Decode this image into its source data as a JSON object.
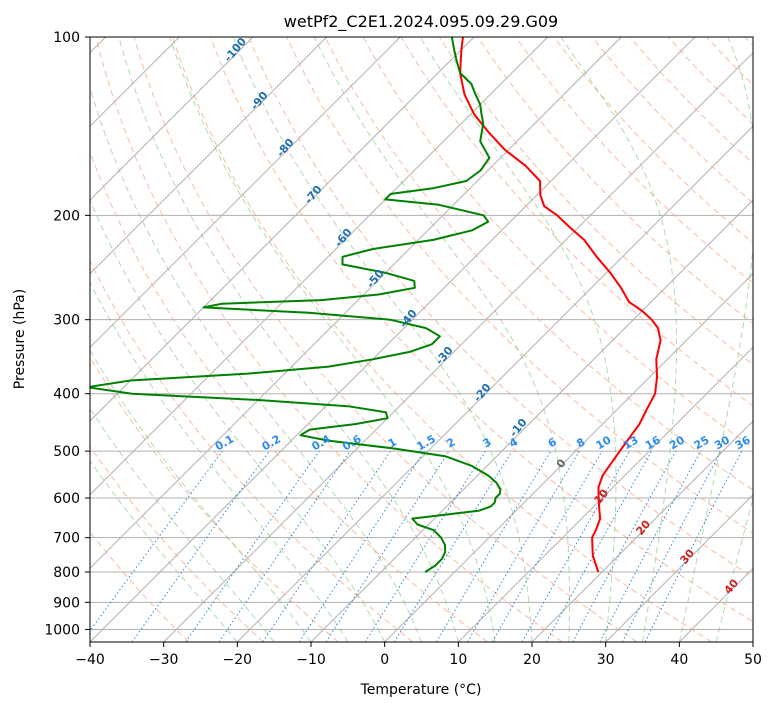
{
  "chart_data": {
    "type": "line",
    "title": "wetPf2_C2E1.2024.095.09.29.G09",
    "xlabel": "Temperature (°C)",
    "ylabel": "Pressure (hPa)",
    "xlim": [
      -40,
      50
    ],
    "ylim": [
      1050,
      100
    ],
    "y_scale": "log",
    "grid": true,
    "x_ticks": [
      -40,
      -30,
      -20,
      -10,
      0,
      10,
      20,
      30,
      40,
      50
    ],
    "y_ticks": [
      100,
      200,
      300,
      400,
      500,
      600,
      700,
      800,
      900,
      1000
    ],
    "series": [
      {
        "role": "temperature",
        "color": "#ff0000",
        "points": [
          [
            19.5,
            800
          ],
          [
            16.5,
            750
          ],
          [
            14.0,
            700
          ],
          [
            13.5,
            680
          ],
          [
            12.5,
            650
          ],
          [
            11.0,
            625
          ],
          [
            9.5,
            600
          ],
          [
            8.0,
            575
          ],
          [
            7.0,
            550
          ],
          [
            6.5,
            525
          ],
          [
            6.0,
            500
          ],
          [
            5.5,
            475
          ],
          [
            5.0,
            450
          ],
          [
            4.0,
            425
          ],
          [
            3.0,
            400
          ],
          [
            1.0,
            375
          ],
          [
            -1.5,
            350
          ],
          [
            -3.5,
            325
          ],
          [
            -5.5,
            310
          ],
          [
            -7.5,
            300
          ],
          [
            -10.0,
            290
          ],
          [
            -13.0,
            280
          ],
          [
            -16.0,
            265
          ],
          [
            -19.5,
            250
          ],
          [
            -23.5,
            235
          ],
          [
            -27.5,
            220
          ],
          [
            -31.0,
            210
          ],
          [
            -34.5,
            200
          ],
          [
            -37.5,
            193
          ],
          [
            -39.5,
            185
          ],
          [
            -41.5,
            175
          ],
          [
            -45.5,
            165
          ],
          [
            -50.5,
            155
          ],
          [
            -55.0,
            145
          ],
          [
            -59.5,
            135
          ],
          [
            -63.5,
            125
          ],
          [
            -67.0,
            115
          ],
          [
            -70.0,
            105
          ],
          [
            -71.5,
            100
          ]
        ]
      },
      {
        "role": "dewpoint",
        "color": "#008000",
        "points": [
          [
            -4.0,
            800
          ],
          [
            -3.5,
            780
          ],
          [
            -3.5,
            760
          ],
          [
            -4.0,
            740
          ],
          [
            -5.0,
            720
          ],
          [
            -6.5,
            700
          ],
          [
            -8.5,
            680
          ],
          [
            -11.5,
            665
          ],
          [
            -13.0,
            650
          ],
          [
            -9.0,
            640
          ],
          [
            -5.0,
            630
          ],
          [
            -4.0,
            620
          ],
          [
            -4.0,
            610
          ],
          [
            -4.5,
            600
          ],
          [
            -4.5,
            590
          ],
          [
            -5.0,
            580
          ],
          [
            -6.5,
            565
          ],
          [
            -8.5,
            550
          ],
          [
            -12.0,
            530
          ],
          [
            -17.0,
            510
          ],
          [
            -25.0,
            495
          ],
          [
            -35.0,
            480
          ],
          [
            -39.5,
            470
          ],
          [
            -39.0,
            460
          ],
          [
            -33.5,
            450
          ],
          [
            -30.0,
            440
          ],
          [
            -31.0,
            430
          ],
          [
            -37.0,
            420
          ],
          [
            -50.0,
            410
          ],
          [
            -68.0,
            400
          ],
          [
            -75.0,
            390
          ],
          [
            -70.0,
            380
          ],
          [
            -55.0,
            370
          ],
          [
            -45.0,
            360
          ],
          [
            -40.0,
            350
          ],
          [
            -36.0,
            340
          ],
          [
            -34.0,
            330
          ],
          [
            -34.0,
            320
          ],
          [
            -37.0,
            310
          ],
          [
            -43.0,
            300
          ],
          [
            -55.0,
            292
          ],
          [
            -70.0,
            286
          ],
          [
            -68.0,
            282
          ],
          [
            -55.0,
            278
          ],
          [
            -48.0,
            272
          ],
          [
            -44.0,
            265
          ],
          [
            -45.0,
            258
          ],
          [
            -50.0,
            250
          ],
          [
            -57.0,
            242
          ],
          [
            -58.0,
            235
          ],
          [
            -55.0,
            228
          ],
          [
            -48.0,
            220
          ],
          [
            -44.0,
            212
          ],
          [
            -43.0,
            205
          ],
          [
            -44.5,
            200
          ],
          [
            -52.0,
            192
          ],
          [
            -60.0,
            188
          ],
          [
            -60.0,
            184
          ],
          [
            -55.0,
            180
          ],
          [
            -51.5,
            175
          ],
          [
            -51.0,
            168
          ],
          [
            -51.5,
            160
          ],
          [
            -55.0,
            150
          ],
          [
            -57.0,
            140
          ],
          [
            -58.5,
            135
          ],
          [
            -60.0,
            130
          ],
          [
            -62.0,
            125
          ],
          [
            -64.0,
            120
          ],
          [
            -67.0,
            115
          ],
          [
            -69.0,
            110
          ],
          [
            -71.0,
            105
          ],
          [
            -73.0,
            100
          ]
        ]
      }
    ],
    "dry_adiabat_labels": [
      "-100",
      "-90",
      "-80",
      "-70",
      "-60",
      "-50",
      "-40",
      "-30",
      "-20",
      "-10"
    ],
    "mixing_ratio_labels": [
      "0.1",
      "0.2",
      "0.4",
      "0.6",
      "1",
      "1.5",
      "2",
      "3",
      "4",
      "6",
      "8",
      "10",
      "13",
      "16",
      "20",
      "25",
      "30",
      "36"
    ],
    "moist_adiabat_labels": [
      "0",
      "10",
      "20",
      "30",
      "40"
    ]
  }
}
